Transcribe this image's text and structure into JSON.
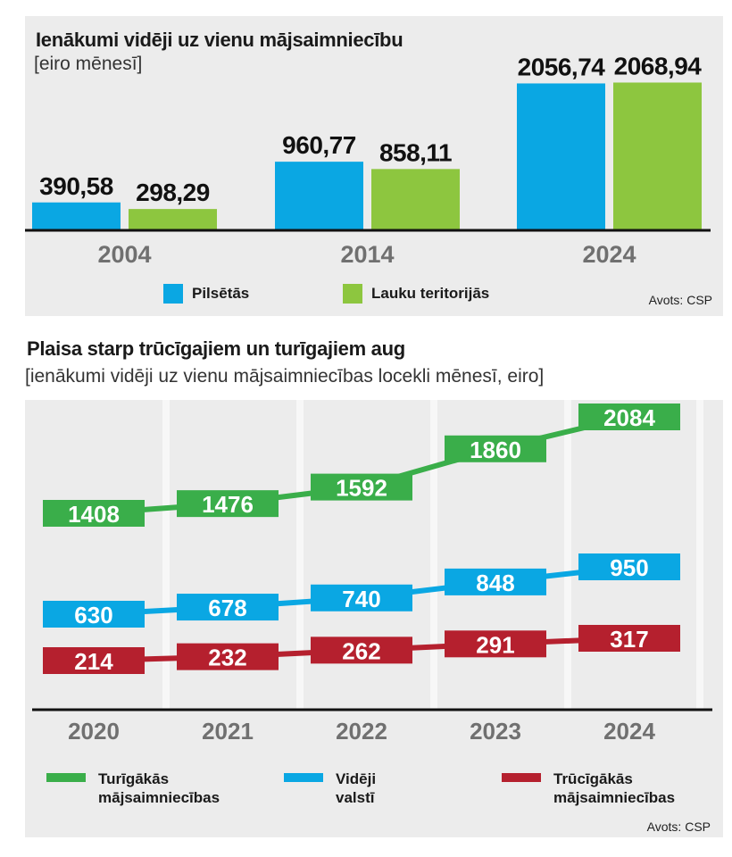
{
  "colors": {
    "blue": "#0aa7e3",
    "green": "#8dc63f",
    "line_green": "#3aae4a",
    "line_blue": "#0aa7e3",
    "line_red": "#b5202e"
  },
  "chart_data": [
    {
      "type": "bar",
      "title": "Ienākumi vidēji uz vienu mājsaimniecību",
      "subtitle": "[eiro mēnesī]",
      "categories": [
        "2004",
        "2014",
        "2024"
      ],
      "series": [
        {
          "name": "Pilsētās",
          "values": [
            390.58,
            960.77,
            2056.74
          ],
          "labels": [
            "390,58",
            "960,77",
            "2056,74"
          ]
        },
        {
          "name": "Lauku teritorijās",
          "values": [
            298.29,
            858.11,
            2068.94
          ],
          "labels": [
            "298,29",
            "858,11",
            "2068,94"
          ]
        }
      ],
      "ylim": [
        0,
        2150
      ],
      "source": "Avots: CSP"
    },
    {
      "type": "line",
      "title": "Plaisa starp trūcīgajiem un turīgajiem aug",
      "subtitle": "[ienākumi vidēji uz vienu mājsaimniecības locekli mēnesī, eiro]",
      "x": [
        "2020",
        "2021",
        "2022",
        "2023",
        "2024"
      ],
      "series": [
        {
          "name": "Turīgākās mājsaimniecības",
          "name_lines": [
            "Turīgākās",
            "mājsaimniecības"
          ],
          "values": [
            1408,
            1476,
            1592,
            1860,
            2084
          ]
        },
        {
          "name": "Vidēji valstī",
          "name_lines": [
            "Vidēji",
            "valstī"
          ],
          "values": [
            630,
            678,
            740,
            848,
            950
          ]
        },
        {
          "name": "Trūcīgākās mājsaimniecības",
          "name_lines": [
            "Trūcīgākās",
            "mājsaimniecības"
          ],
          "values": [
            214,
            232,
            262,
            291,
            317
          ]
        }
      ],
      "source": "Avots: CSP"
    }
  ]
}
